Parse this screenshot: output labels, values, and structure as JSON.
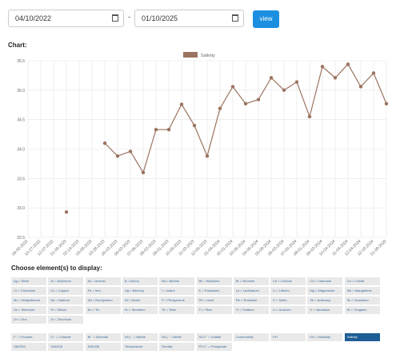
{
  "filter": {
    "start_date": "04/10/2022",
    "separator": "-",
    "end_date": "01/10/2025",
    "button": "view"
  },
  "chart_heading": "Chart:",
  "chart_data": {
    "type": "line",
    "categories": [
      "09-30-2022",
      "10-27-2022",
      "12-07-2022",
      "01-05-2023",
      "02-14-2023",
      "03-08-2023",
      "03-28-2023",
      "05-03-2023",
      "06-02-2023",
      "07-06-2023",
      "08-02-2023",
      "09-01-2023",
      "10-05-2023",
      "11-03-2023",
      "12-05-2023",
      "01-04-2024",
      "02-01-2024",
      "03-06-2024",
      "04-09-2024",
      "05-08-2024",
      "06-03-2024",
      "07-05-2024",
      "08-01-2024",
      "09-03-2024",
      "10-04-2024",
      "11-04-2024",
      "12-04-2024",
      "12-18-2024",
      "01-08-2025"
    ],
    "series": [
      {
        "name": "Salinity",
        "color": "#9b7461",
        "values": [
          null,
          null,
          null,
          32.93,
          null,
          null,
          34.1,
          33.88,
          33.96,
          33.6,
          34.33,
          34.33,
          34.76,
          34.4,
          33.88,
          34.69,
          35.06,
          34.77,
          34.84,
          35.21,
          35.0,
          35.14,
          34.55,
          35.4,
          35.21,
          35.44,
          35.06,
          35.29,
          34.77
        ]
      }
    ],
    "ylim": [
      32.5,
      35.5
    ],
    "yticks": [
      32.5,
      {
        "value": 33,
        "label": "33.0"
      },
      33.5,
      {
        "value": 34,
        "label": "34.0"
      },
      34.5,
      {
        "value": 35,
        "label": "35.0"
      },
      35.5
    ],
    "grid": true,
    "legend": "top"
  },
  "elements": {
    "heading": "Choose element(s) to display:",
    "groups": [
      [
        "Ag = Silver",
        "Al = Aluminum",
        "As = Arsenic",
        "B = Boron",
        "Ba = Barium",
        "Be = Beryllium",
        "Br = Bromine",
        "Ca = Calcium",
        "Cd = Cadmium",
        "Co = Cobalt",
        "Cr = Chromium",
        "Cu = Copper",
        "Fe = Iron",
        "Hg = Mercury",
        "I = Iodine",
        "K = Potassium",
        "La = Lanthanum",
        "Li = Lithium",
        "Mg = Magnesium",
        "Mn = Manganese",
        "Mo = Molybdenum",
        "Na = Natrium",
        "Nd = Neodymium",
        "Ni = Nickel",
        "P = Phosphorus",
        "Pb = Lead",
        "Rb = Rubidium",
        "S = Sulfur",
        "Sb = Antimony",
        "Sc = Scandium",
        "Se = Selenium",
        "Si = Silicon",
        "Sn = Tin",
        "Sr = Strontium",
        "Te = Tellur",
        "Ti = Titan",
        "Tl = Thallium",
        "U = Uranium",
        "V = Vanadium",
        "W = Tungsten",
        "Zn = Zinc",
        "Zr = Zirconium"
      ],
      [
        "F⁻ = Fluoride",
        "Cl⁻ = Chloride",
        "Br⁻ = Bromide",
        "NO₃⁻ = Nitrate",
        "NO₂⁻ = Nitrite",
        "SO₄²⁻ = Sulfate",
        "Conductivity",
        "PH",
        "KH = Alkalinity",
        "Salinity",
        "SAK254",
        "SAK405",
        "SAK436",
        "Temperature",
        "Density",
        "PO₄³⁻ = Phosphate"
      ]
    ],
    "selected_group": 1,
    "selected_index": 9
  }
}
